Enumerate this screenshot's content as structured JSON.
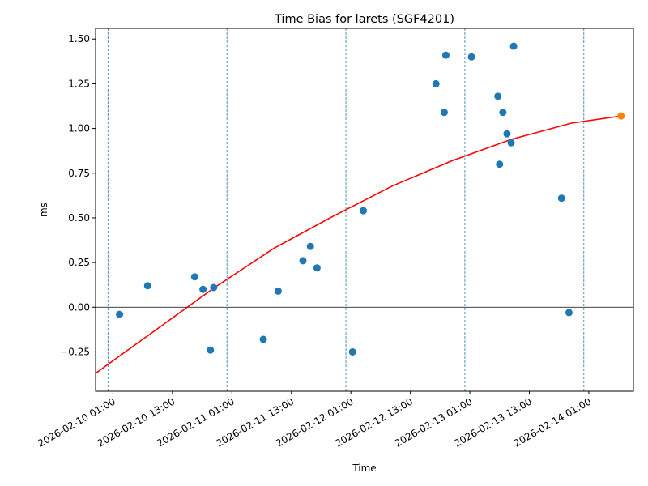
{
  "chart_data": {
    "type": "scatter",
    "title": "Time Bias for larets (SGF4201)",
    "xlabel": "Time",
    "ylabel": "ms",
    "x_range": [
      "2026-02-09 21:30",
      "2026-02-14 10:00"
    ],
    "ylim": [
      -0.47,
      1.56
    ],
    "y_ticks": [
      -0.25,
      0.0,
      0.25,
      0.5,
      0.75,
      1.0,
      1.25,
      1.5
    ],
    "y_tick_labels": [
      "−0.25",
      "0.00",
      "0.25",
      "0.50",
      "0.75",
      "1.00",
      "1.25",
      "1.50"
    ],
    "x_ticks": [
      "2026-02-10 01:00",
      "2026-02-10 13:00",
      "2026-02-11 01:00",
      "2026-02-11 13:00",
      "2026-02-12 01:00",
      "2026-02-12 13:00",
      "2026-02-13 01:00",
      "2026-02-13 13:00",
      "2026-02-14 01:00"
    ],
    "x_tick_labels": [
      "2026-02-10 01:00",
      "2026-02-10 13:00",
      "2026-02-11 01:00",
      "2026-02-11 13:00",
      "2026-02-12 01:00",
      "2026-02-12 13:00",
      "2026-02-13 01:00",
      "2026-02-13 13:00",
      "2026-02-14 01:00"
    ],
    "vlines": [
      "2026-02-10 00:00",
      "2026-02-11 00:00",
      "2026-02-12 00:00",
      "2026-02-13 00:00",
      "2026-02-14 00:00"
    ],
    "hline_y": 0,
    "grid": false,
    "colors": {
      "points": "#1f77b4",
      "fit": "#ff0000",
      "highlight": "#ff7f0e",
      "vlines": "#1f77b4",
      "zero_line": "#000000"
    },
    "series": [
      {
        "type": "scatter",
        "points": [
          {
            "x": "2026-02-10 02:20",
            "y": -0.04
          },
          {
            "x": "2026-02-10 08:00",
            "y": 0.12
          },
          {
            "x": "2026-02-10 17:30",
            "y": 0.17
          },
          {
            "x": "2026-02-10 19:10",
            "y": 0.1
          },
          {
            "x": "2026-02-10 20:40",
            "y": -0.24
          },
          {
            "x": "2026-02-10 21:20",
            "y": 0.11
          },
          {
            "x": "2026-02-11 07:20",
            "y": -0.18
          },
          {
            "x": "2026-02-11 10:20",
            "y": 0.09
          },
          {
            "x": "2026-02-11 15:20",
            "y": 0.26
          },
          {
            "x": "2026-02-11 16:50",
            "y": 0.34
          },
          {
            "x": "2026-02-11 18:10",
            "y": 0.22
          },
          {
            "x": "2026-02-12 01:20",
            "y": -0.25
          },
          {
            "x": "2026-02-12 03:30",
            "y": 0.54
          },
          {
            "x": "2026-02-12 18:10",
            "y": 1.25
          },
          {
            "x": "2026-02-12 19:50",
            "y": 1.09
          },
          {
            "x": "2026-02-12 20:10",
            "y": 1.41
          },
          {
            "x": "2026-02-13 01:20",
            "y": 1.4
          },
          {
            "x": "2026-02-13 06:40",
            "y": 1.18
          },
          {
            "x": "2026-02-13 07:00",
            "y": 0.8
          },
          {
            "x": "2026-02-13 07:40",
            "y": 1.09
          },
          {
            "x": "2026-02-13 08:30",
            "y": 0.97
          },
          {
            "x": "2026-02-13 09:20",
            "y": 0.92
          },
          {
            "x": "2026-02-13 09:50",
            "y": 1.46
          },
          {
            "x": "2026-02-13 19:30",
            "y": 0.61
          },
          {
            "x": "2026-02-13 21:00",
            "y": -0.03
          }
        ]
      },
      {
        "type": "line",
        "points": [
          {
            "x": "2026-02-09 21:30",
            "y": -0.37
          },
          {
            "x": "2026-02-10 09:30",
            "y": -0.13
          },
          {
            "x": "2026-02-10 21:30",
            "y": 0.11
          },
          {
            "x": "2026-02-11 09:30",
            "y": 0.33
          },
          {
            "x": "2026-02-11 21:30",
            "y": 0.51
          },
          {
            "x": "2026-02-12 09:30",
            "y": 0.68
          },
          {
            "x": "2026-02-12 21:30",
            "y": 0.82
          },
          {
            "x": "2026-02-13 09:30",
            "y": 0.94
          },
          {
            "x": "2026-02-13 21:30",
            "y": 1.03
          },
          {
            "x": "2026-02-14 07:30",
            "y": 1.07
          }
        ]
      },
      {
        "type": "scatter",
        "points": [
          {
            "x": "2026-02-14 07:30",
            "y": 1.07
          }
        ]
      }
    ]
  }
}
